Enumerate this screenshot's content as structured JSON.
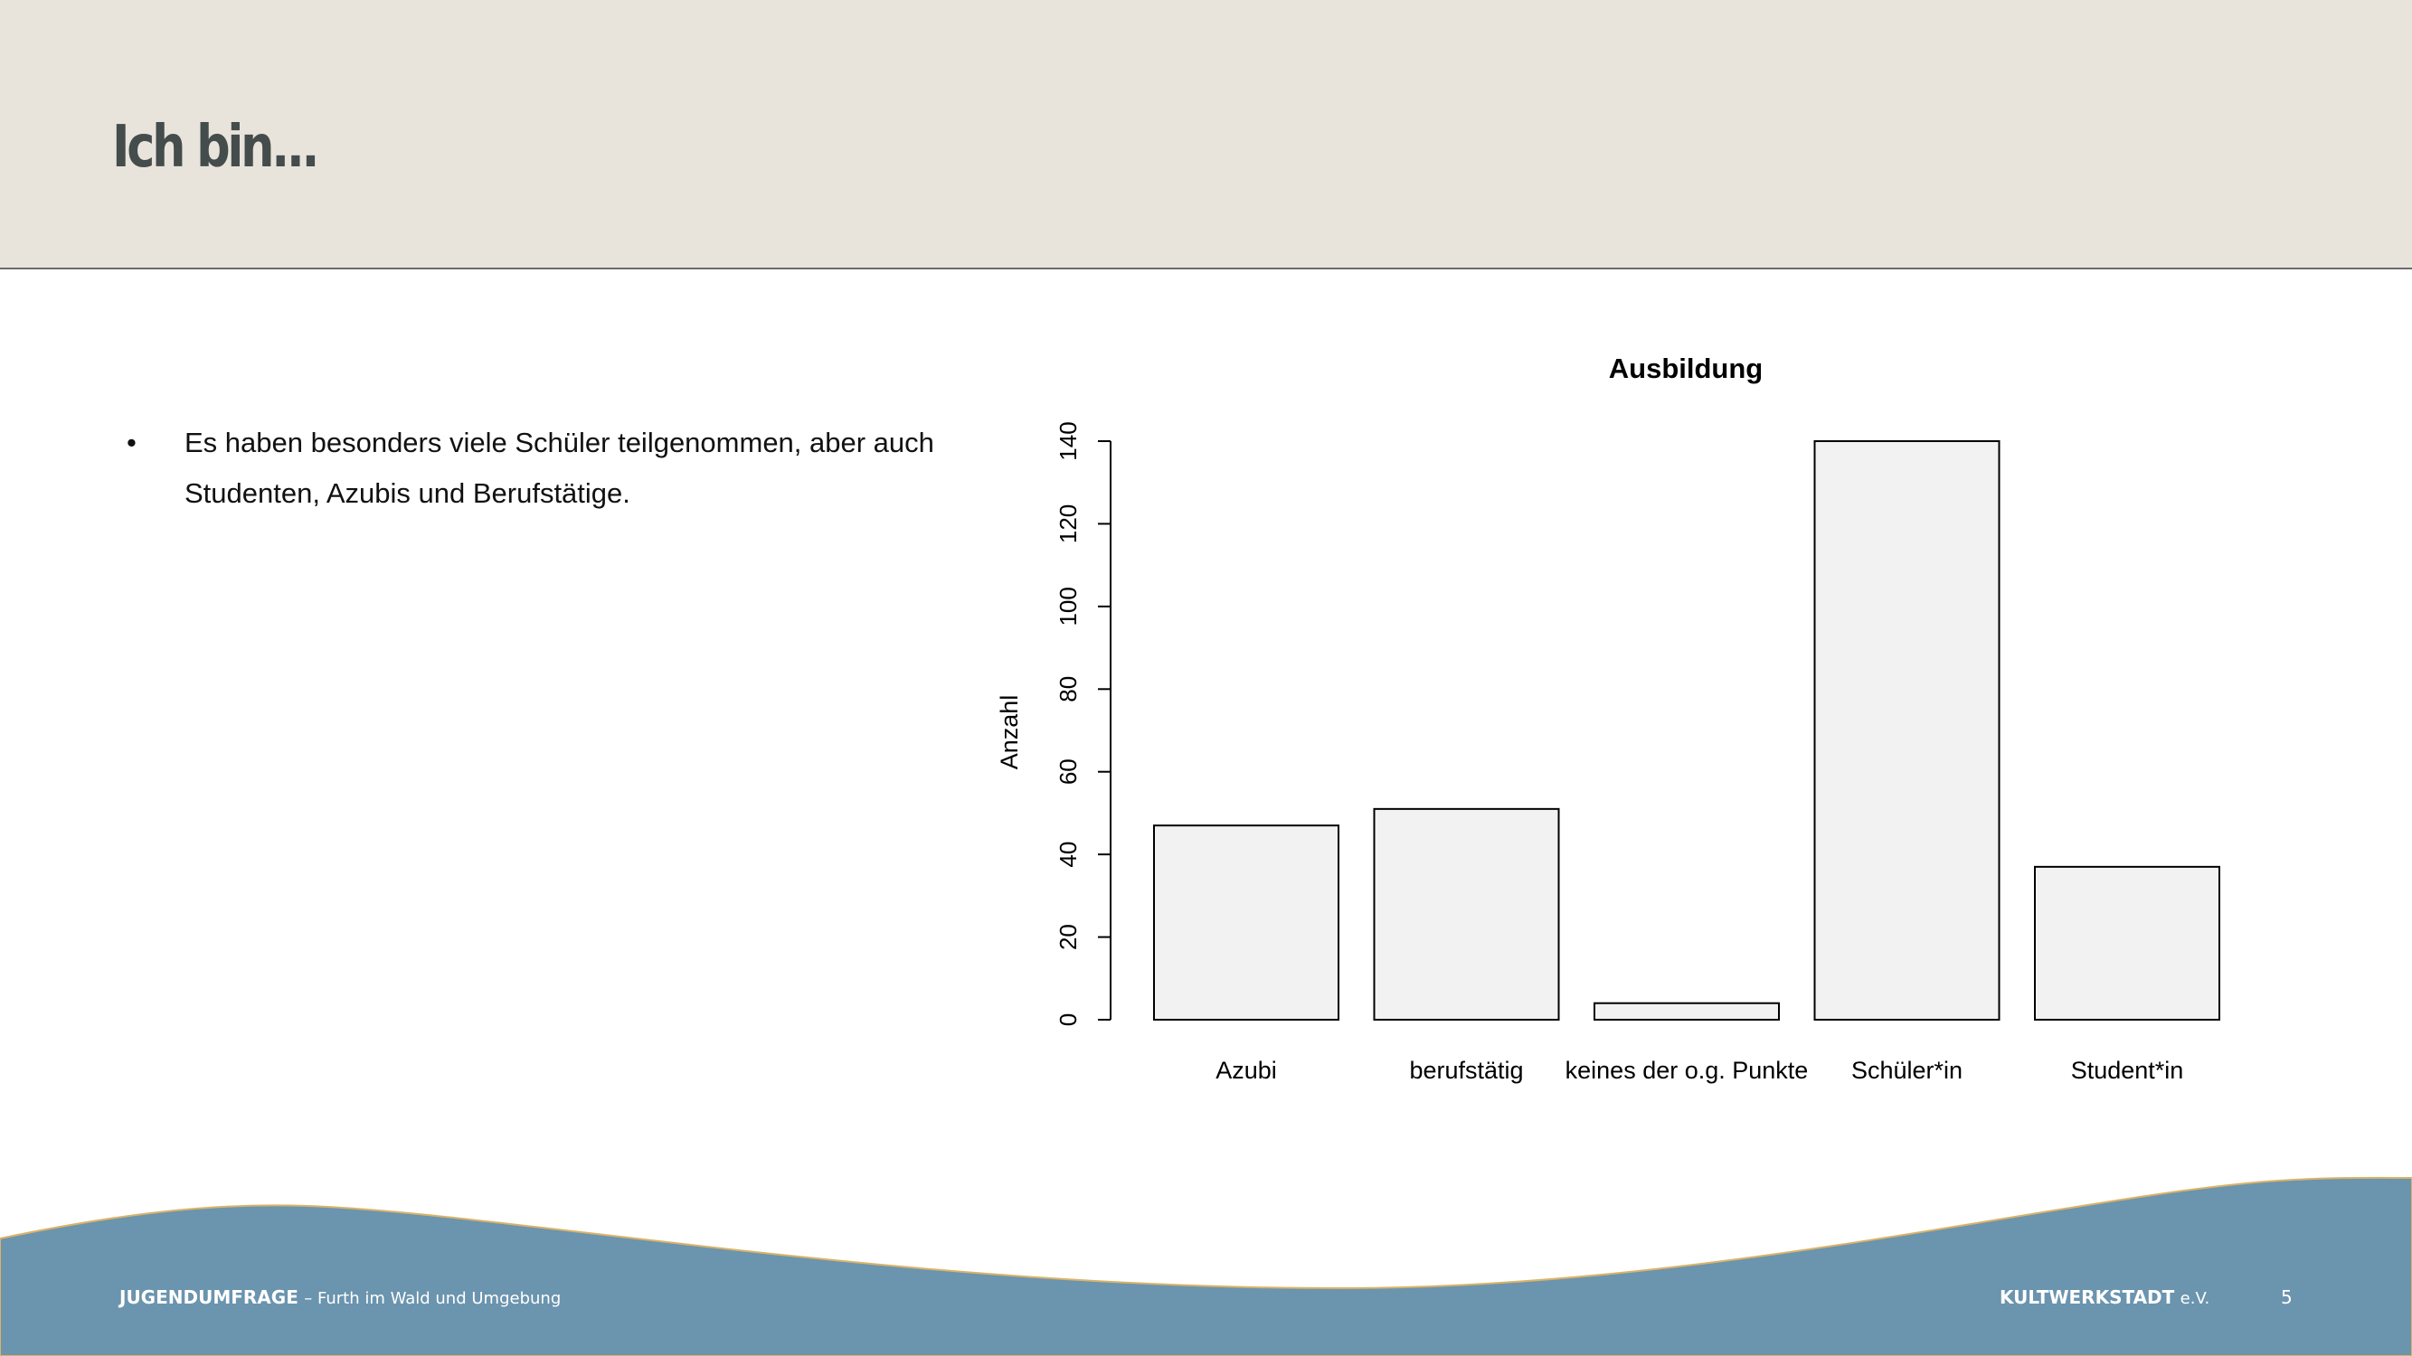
{
  "header": {
    "title": "Ich bin..."
  },
  "content": {
    "bullets": [
      "Es haben besonders viele Schüler teilgenommen, aber auch Studenten, Azubis und Berufstätige."
    ]
  },
  "chart_data": {
    "type": "bar",
    "title": "Ausbildung",
    "xlabel": "",
    "ylabel": "Anzahl",
    "categories": [
      "Azubi",
      "berufstätig",
      "keines der o.g. Punkte",
      "Schüler*in",
      "Student*in"
    ],
    "values": [
      47,
      51,
      4,
      140,
      37
    ],
    "ylim": [
      0,
      140
    ],
    "yticks": [
      0,
      20,
      40,
      60,
      80,
      100,
      120,
      140
    ],
    "grid": false,
    "bar_fill": "#f2f2f2",
    "bar_stroke": "#000000"
  },
  "footer": {
    "left_bold": "JUGENDUMFRAGE",
    "left_rest": "– Furth im Wald und Umgebung",
    "right_bold": "KULTWERKSTADT",
    "right_rest": "e.V.",
    "page_number": "5",
    "wave_color": "#6b94ae",
    "wave_edge_color": "#d9b36a"
  }
}
